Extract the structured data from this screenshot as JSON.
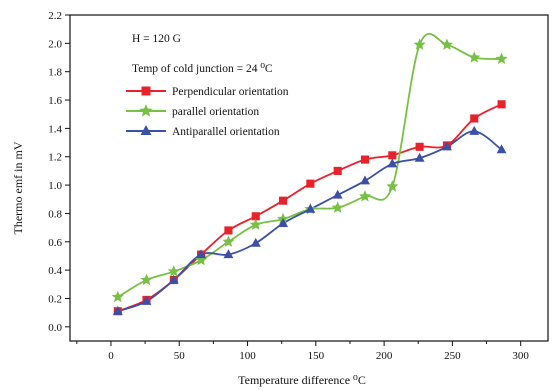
{
  "chart_data": {
    "type": "line",
    "xlabel": "Temperature difference ⁰C",
    "ylabel": "Thermo emf in mV",
    "xlim": [
      -30,
      320
    ],
    "ylim": [
      -0.1,
      2.2
    ],
    "xticks": [
      0,
      50,
      100,
      150,
      200,
      250,
      300
    ],
    "yticks": [
      0.0,
      0.2,
      0.4,
      0.6,
      0.8,
      1.0,
      1.2,
      1.4,
      1.6,
      1.8,
      2.0,
      2.2
    ],
    "grid": false,
    "annotations": [
      "H = 120 G",
      "Temp of cold junction = 24 ⁰C"
    ],
    "legend_position": "upper-left",
    "series": [
      {
        "name": "Perpendicular orientation",
        "color": "#e8212b",
        "marker": "square",
        "x": [
          5,
          26,
          46,
          66,
          86,
          106,
          126,
          146,
          166,
          186,
          206,
          226,
          246,
          266,
          286
        ],
        "y": [
          0.11,
          0.19,
          0.33,
          0.51,
          0.68,
          0.78,
          0.89,
          1.01,
          1.1,
          1.18,
          1.21,
          1.27,
          1.28,
          1.47,
          1.57
        ]
      },
      {
        "name": "parallel orientation",
        "color": "#77c043",
        "marker": "star",
        "x": [
          5,
          26,
          46,
          66,
          86,
          106,
          126,
          146,
          166,
          186,
          206,
          226,
          246,
          266,
          286
        ],
        "y": [
          0.21,
          0.33,
          0.39,
          0.47,
          0.6,
          0.72,
          0.76,
          0.83,
          0.84,
          0.92,
          0.99,
          1.99,
          1.99,
          1.9,
          1.89
        ]
      },
      {
        "name": "Antiparallel orientation",
        "color": "#3a4fa6",
        "marker": "triangle",
        "x": [
          5,
          26,
          46,
          66,
          86,
          106,
          126,
          146,
          166,
          186,
          206,
          226,
          246,
          266,
          286
        ],
        "y": [
          0.11,
          0.18,
          0.33,
          0.51,
          0.51,
          0.59,
          0.73,
          0.83,
          0.93,
          1.03,
          1.15,
          1.19,
          1.27,
          1.38,
          1.25
        ]
      }
    ]
  }
}
